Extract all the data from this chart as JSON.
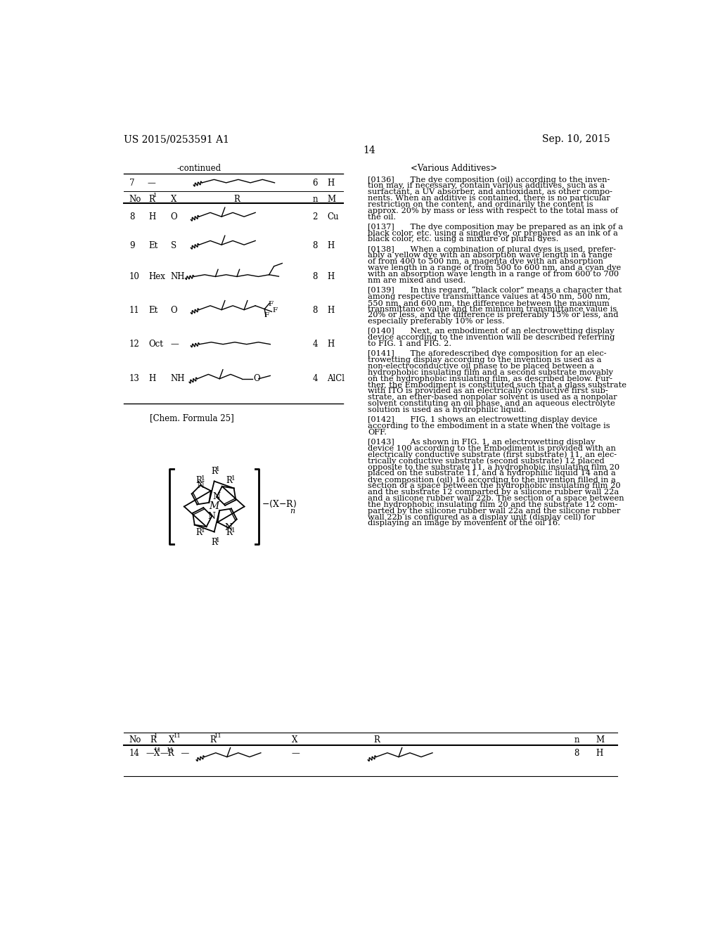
{
  "patent_number": "US 2015/0253591 A1",
  "date": "Sep. 10, 2015",
  "page_number": "14",
  "background_color": "#ffffff",
  "text_color": "#000000",
  "right_paragraphs": [
    "[0136]  The dye composition (oil) according to the inven-",
    "tion may, if necessary, contain various additives, such as a",
    "surfactant, a UV absorber, and antioxidant, as other compo-",
    "nents. When an additive is contained, there is no particular",
    "restriction on the content, and ordinarily the content is",
    "approx. 20% by mass or less with respect to the total mass of",
    "the oil.",
    "",
    "[0137]  The dye composition may be prepared as an ink of a",
    "black color, etc. using a single dye, or prepared as an ink of a",
    "black color, etc. using a mixture of plural dyes.",
    "",
    "[0138]  When a combination of plural dyes is used, prefer-",
    "ably a yellow dye with an absorption wave length in a range",
    "of from 400 to 500 nm, a magenta dye with an absorption",
    "wave length in a range of from 500 to 600 nm, and a cyan dye",
    "with an absorption wave length in a range of from 600 to 700",
    "nm are mixed and used.",
    "",
    "[0139]  In this regard, “black color” means a character that",
    "among respective transmittance values at 450 nm, 500 nm,",
    "550 nm, and 600 nm, the difference between the maximum",
    "transmittance value and the minimum transmittance value is",
    "20% or less, and the difference is preferably 15% or less, and",
    "especially preferably 10% or less.",
    "",
    "[0140]  Next, an embodiment of an electrowetting display",
    "device according to the invention will be described referring",
    "to FIG. 1 and FIG. 2.",
    "",
    "[0141]  The aforedescribed dye composition for an elec-",
    "trowetting display according to the invention is used as a",
    "non-electroconductive oil phase to be placed between a",
    "hydrophobic insulating film and a second substrate movably",
    "on the hydrophobic insulating film, as described below. Fur-",
    "ther, the Embodiment is constituted such that a glass substrate",
    "with ITO is provided as an electrically conductive first sub-",
    "strate, an ether-based nonpolar solvent is used as a nonpolar",
    "solvent constituting an oil phase, and an aqueous electrolyte",
    "solution is used as a hydrophilic liquid.",
    "",
    "[0142]  FIG. 1 shows an electrowetting display device",
    "according to the embodiment in a state when the voltage is",
    "OFF.",
    "",
    "[0143]  As shown in FIG. 1, an electrowetting display",
    "device 100 according to the Embodiment is provided with an",
    "electrically conductive substrate (first substrate) 11, an elec-",
    "trically conductive substrate (second substrate) 12 placed",
    "opposite to the substrate 11, a hydrophobic insulating film 20",
    "placed on the substrate 11, and a hydrophilic liquid 14 and a",
    "dye composition (oil) 16 according to the invention filled in a",
    "section of a space between the hydrophobic insulating film 20",
    "and the substrate 12 comparted by a silicone rubber wall 22a",
    "and a silicone rubber wall 22b. The section of a space between",
    "the hydrophobic insulating film 20 and the substrate 12 com-",
    "parted by the silicone rubber wall 22a and the silicone rubber",
    "wall 22b is configured as a display unit (display cell) for",
    "displaying an image by movement of the oil 16."
  ]
}
